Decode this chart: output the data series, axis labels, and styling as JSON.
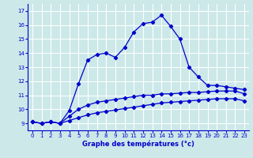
{
  "xlabel": "Graphe des températures (°c)",
  "background_color": "#cce8e8",
  "grid_color": "#ffffff",
  "line_color": "#0000cc",
  "xlim": [
    -0.5,
    23.5
  ],
  "ylim": [
    8.5,
    17.5
  ],
  "xticks": [
    0,
    1,
    2,
    3,
    4,
    5,
    6,
    7,
    8,
    9,
    10,
    11,
    12,
    13,
    14,
    15,
    16,
    17,
    18,
    19,
    20,
    21,
    22,
    23
  ],
  "yticks": [
    9,
    10,
    11,
    12,
    13,
    14,
    15,
    16,
    17
  ],
  "main_x": [
    0,
    1,
    2,
    3,
    4,
    5,
    6,
    7,
    8,
    9,
    10,
    11,
    12,
    13,
    14,
    15,
    16,
    17,
    18,
    19,
    20,
    21,
    22,
    23
  ],
  "main_y": [
    9.1,
    9.0,
    9.1,
    9.0,
    9.9,
    11.8,
    13.5,
    13.9,
    14.0,
    13.7,
    14.4,
    15.5,
    16.1,
    16.2,
    16.7,
    15.9,
    15.0,
    13.0,
    12.3,
    11.7,
    11.7,
    11.6,
    11.5,
    11.4
  ],
  "line2_x": [
    0,
    1,
    2,
    3,
    4,
    5,
    6,
    7,
    8,
    9,
    10,
    11,
    12,
    13,
    14,
    15,
    16,
    17,
    18,
    19,
    20,
    21,
    22,
    23
  ],
  "line2_y": [
    9.1,
    9.0,
    9.1,
    9.0,
    9.5,
    10.0,
    10.3,
    10.5,
    10.6,
    10.7,
    10.8,
    10.9,
    11.0,
    11.0,
    11.1,
    11.1,
    11.15,
    11.2,
    11.2,
    11.25,
    11.3,
    11.3,
    11.3,
    11.1
  ],
  "line3_x": [
    0,
    1,
    2,
    3,
    4,
    5,
    6,
    7,
    8,
    9,
    10,
    11,
    12,
    13,
    14,
    15,
    16,
    17,
    18,
    19,
    20,
    21,
    22,
    23
  ],
  "line3_y": [
    9.1,
    9.0,
    9.1,
    9.0,
    9.2,
    9.4,
    9.6,
    9.75,
    9.85,
    9.95,
    10.05,
    10.15,
    10.25,
    10.35,
    10.45,
    10.5,
    10.55,
    10.6,
    10.65,
    10.7,
    10.75,
    10.75,
    10.75,
    10.6
  ]
}
